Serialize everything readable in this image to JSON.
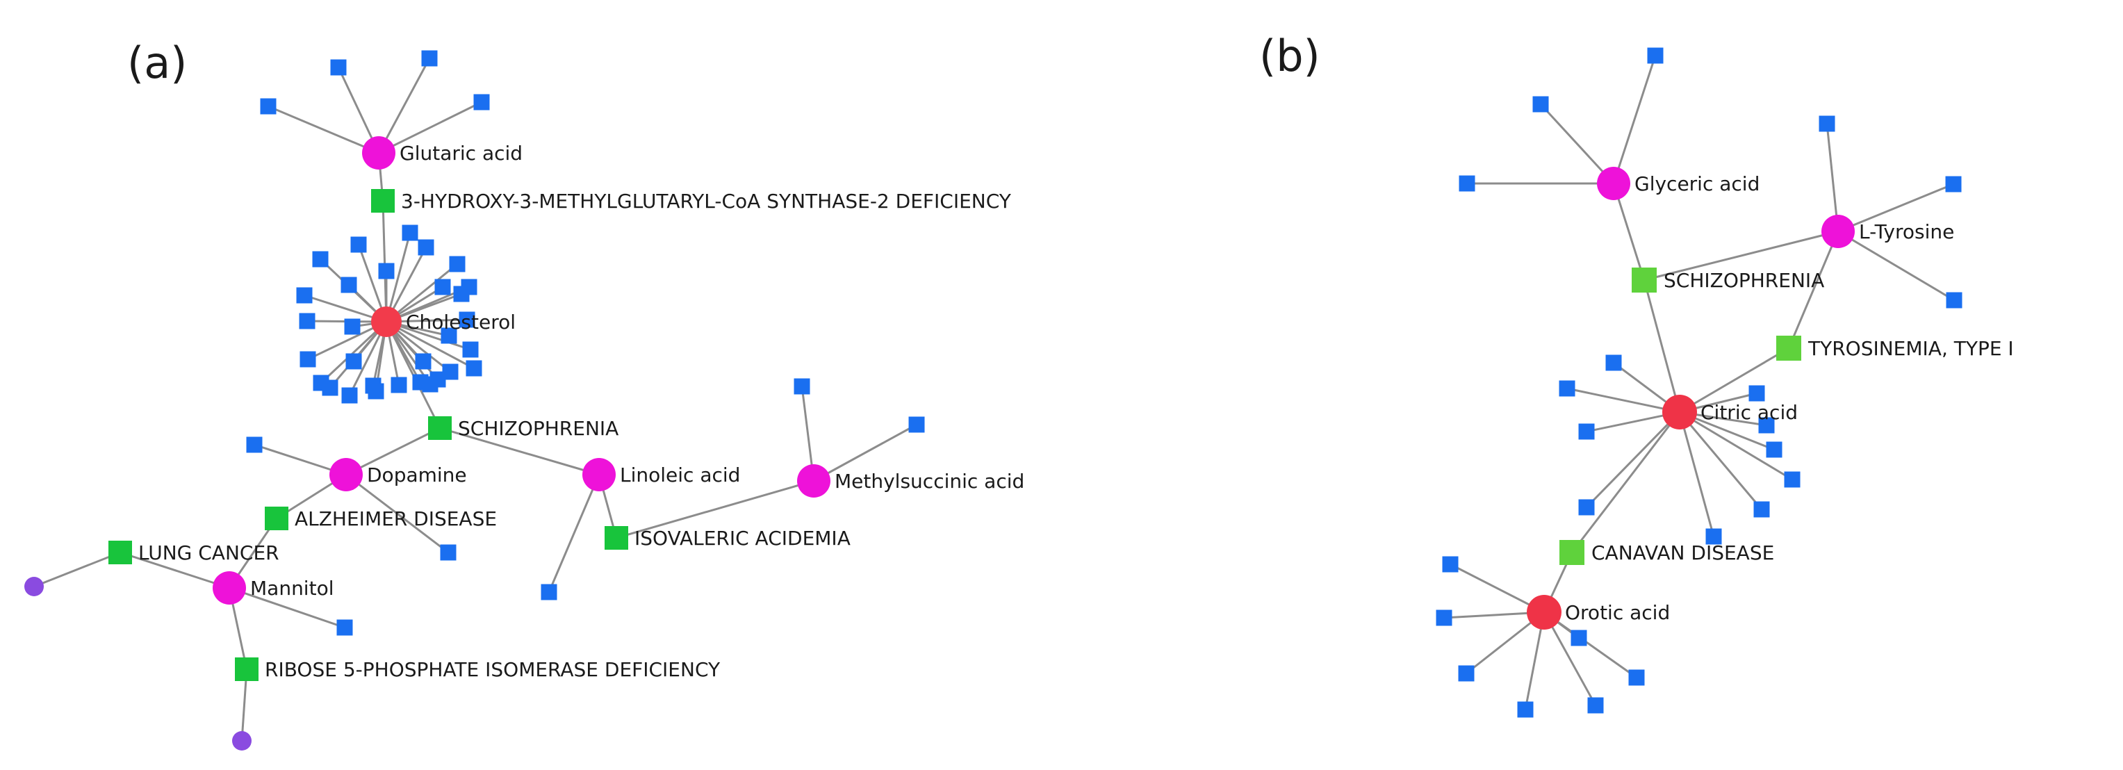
{
  "colors": {
    "edge": "#8c8c8c",
    "hub": "#f23b4b",
    "metabolite": "#ee12d9",
    "disease": "#18c43c",
    "gene": "#1a6ff0",
    "other": "#8a4be0",
    "hub_b": "#ef3347",
    "disease_b": "#5fd23c"
  },
  "panels": [
    {
      "label": "(a)",
      "nodes": [
        {
          "id": "glutaric",
          "type": "metabolite",
          "label": "Glutaric acid"
        },
        {
          "id": "hmg",
          "type": "disease",
          "label": "3-HYDROXY-3-METHYLGLUTARYL-CoA SYNTHASE-2 DEFICIENCY"
        },
        {
          "id": "cholesterol",
          "type": "hub",
          "label": "Cholesterol"
        },
        {
          "id": "schiz_a",
          "type": "disease",
          "label": "SCHIZOPHRENIA"
        },
        {
          "id": "dopamine",
          "type": "metabolite",
          "label": "Dopamine"
        },
        {
          "id": "linoleic",
          "type": "metabolite",
          "label": "Linoleic acid"
        },
        {
          "id": "methylsuccinic",
          "type": "metabolite",
          "label": "Methylsuccinic acid"
        },
        {
          "id": "alzheimer",
          "type": "disease",
          "label": "ALZHEIMER DISEASE"
        },
        {
          "id": "isovaleric",
          "type": "disease",
          "label": "ISOVALERIC ACIDEMIA"
        },
        {
          "id": "lung",
          "type": "disease",
          "label": "LUNG CANCER"
        },
        {
          "id": "mannitol",
          "type": "metabolite",
          "label": "Mannitol"
        },
        {
          "id": "ribose",
          "type": "disease",
          "label": "RIBOSE 5-PHOSPHATE ISOMERASE DEFICIENCY"
        },
        {
          "id": "p1",
          "type": "other",
          "label": ""
        },
        {
          "id": "p2",
          "type": "other",
          "label": ""
        }
      ],
      "edges": [
        [
          "glutaric",
          "hmg"
        ],
        [
          "hmg",
          "cholesterol"
        ],
        [
          "cholesterol",
          "schiz_a"
        ],
        [
          "schiz_a",
          "dopamine"
        ],
        [
          "schiz_a",
          "linoleic"
        ],
        [
          "dopamine",
          "alzheimer"
        ],
        [
          "linoleic",
          "isovaleric"
        ],
        [
          "isovaleric",
          "methylsuccinic"
        ],
        [
          "alzheimer",
          "mannitol"
        ],
        [
          "lung",
          "mannitol"
        ],
        [
          "lung",
          "p1"
        ],
        [
          "mannitol",
          "ribose"
        ],
        [
          "ribose",
          "p2"
        ]
      ],
      "gene_leaves": {
        "glutaric": 4,
        "cholesterol": 30,
        "dopamine": 2,
        "linoleic": 1,
        "methylsuccinic": 2,
        "mannitol": 1
      }
    },
    {
      "label": "(b)",
      "nodes": [
        {
          "id": "glyceric",
          "type": "metabolite",
          "label": "Glyceric acid"
        },
        {
          "id": "tyrosine",
          "type": "metabolite",
          "label": "L-Tyrosine"
        },
        {
          "id": "schiz_b",
          "type": "disease_b",
          "label": "SCHIZOPHRENIA"
        },
        {
          "id": "tyrosinemia",
          "type": "disease_b",
          "label": "TYROSINEMIA, TYPE I"
        },
        {
          "id": "citric",
          "type": "hub_b",
          "label": "Citric acid"
        },
        {
          "id": "canavan",
          "type": "disease_b",
          "label": "CANAVAN DISEASE"
        },
        {
          "id": "orotic",
          "type": "hub_b",
          "label": "Orotic acid"
        }
      ],
      "edges": [
        [
          "glyceric",
          "schiz_b"
        ],
        [
          "schiz_b",
          "tyrosine"
        ],
        [
          "tyrosine",
          "tyrosinemia"
        ],
        [
          "schiz_b",
          "citric"
        ],
        [
          "tyrosinemia",
          "citric"
        ],
        [
          "citric",
          "canavan"
        ],
        [
          "canavan",
          "orotic"
        ]
      ],
      "gene_leaves": {
        "glyceric": 3,
        "tyrosine": 3,
        "citric": 10,
        "orotic": 7
      }
    }
  ]
}
